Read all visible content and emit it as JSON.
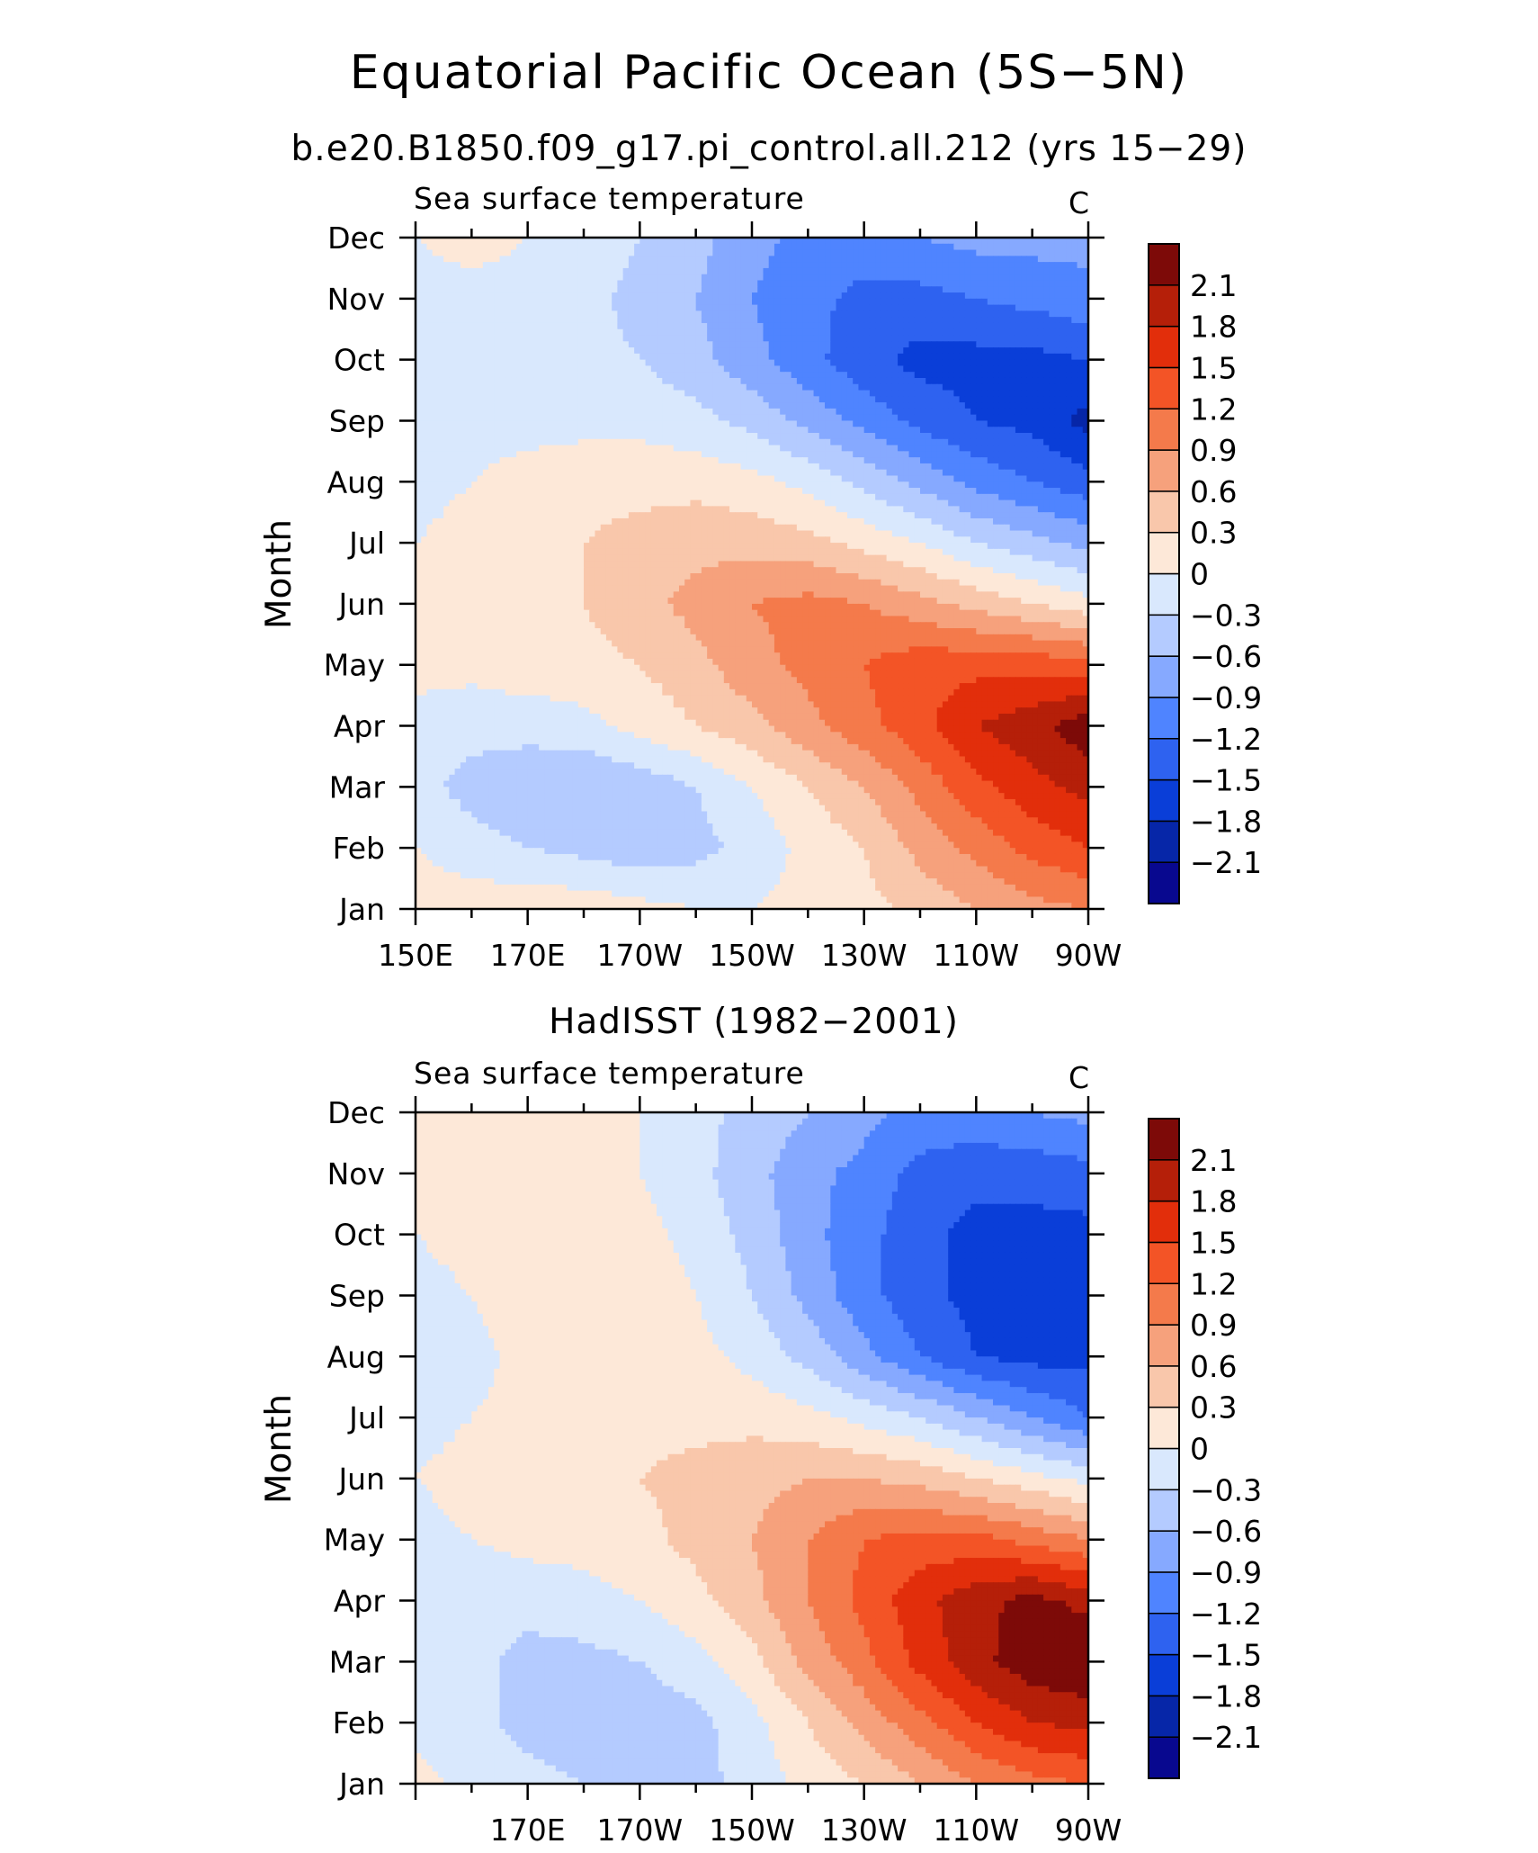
{
  "figure": {
    "title": "Equatorial Pacific Ocean (5S−5N)",
    "colors": {
      "levels": [
        "#08088f",
        "#0626a8",
        "#0a3ed8",
        "#2e62f0",
        "#4f84ff",
        "#86a9ff",
        "#b4cbff",
        "#d9e8fd",
        "#fde8d8",
        "#f9c7ab",
        "#f6a17c",
        "#f47a4b",
        "#f35426",
        "#e22e0b",
        "#b51f09",
        "#7d0a08"
      ],
      "line": "#000000"
    }
  },
  "chart_data": [
    {
      "type": "heatmap",
      "title": "b.e20.B1850.f09_g17.pi_control.all.212 (yrs 15−29)",
      "left_title": "Sea surface temperature",
      "right_title": "C",
      "ylabel": "Month",
      "x_ticks": [
        "150E",
        "170E",
        "170W",
        "150W",
        "130W",
        "110W",
        "90W"
      ],
      "x_tick_lon": [
        150,
        170,
        190,
        210,
        230,
        250,
        270
      ],
      "xlim": [
        150,
        270
      ],
      "y_ticks": [
        "Jan",
        "Feb",
        "Mar",
        "Apr",
        "May",
        "Jun",
        "Jul",
        "Aug",
        "Sep",
        "Oct",
        "Nov",
        "Dec"
      ],
      "colorbar_labels": [
        "−2.1",
        "−1.8",
        "−1.5",
        "−1.2",
        "−0.9",
        "−0.6",
        "−0.3",
        "0",
        "0.3",
        "0.6",
        "0.9",
        "1.2",
        "1.5",
        "1.8",
        "2.1"
      ],
      "levels": [
        -2.1,
        -1.8,
        -1.5,
        -1.2,
        -0.9,
        -0.6,
        -0.3,
        0,
        0.3,
        0.6,
        0.9,
        1.2,
        1.5,
        1.8,
        2.1
      ],
      "lon": [
        150,
        160,
        170,
        180,
        190,
        200,
        210,
        220,
        230,
        240,
        250,
        260,
        270
      ],
      "values": [
        [
          0.2,
          0.2,
          0.2,
          0.2,
          0.1,
          0.0,
          0.0,
          0.1,
          0.2,
          0.4,
          0.6,
          0.8,
          0.9
        ],
        [
          0.0,
          -0.2,
          -0.3,
          -0.4,
          -0.5,
          -0.4,
          -0.2,
          0.1,
          0.3,
          0.7,
          1.0,
          1.3,
          1.5
        ],
        [
          -0.2,
          -0.4,
          -0.5,
          -0.6,
          -0.5,
          -0.3,
          0.0,
          0.3,
          0.6,
          1.0,
          1.4,
          1.7,
          1.9
        ],
        [
          -0.1,
          -0.2,
          -0.2,
          -0.1,
          0.1,
          0.3,
          0.5,
          0.8,
          1.1,
          1.4,
          1.8,
          2.0,
          2.3
        ],
        [
          0.1,
          0.1,
          0.2,
          0.2,
          0.3,
          0.5,
          0.8,
          1.0,
          1.2,
          1.4,
          1.4,
          1.4,
          1.3
        ],
        [
          0.1,
          0.1,
          0.2,
          0.3,
          0.5,
          0.7,
          0.9,
          1.0,
          0.9,
          0.7,
          0.5,
          0.3,
          0.1
        ],
        [
          0.0,
          0.1,
          0.2,
          0.3,
          0.4,
          0.5,
          0.5,
          0.4,
          0.2,
          0.0,
          -0.3,
          -0.5,
          -0.7
        ],
        [
          -0.1,
          0.0,
          0.1,
          0.2,
          0.2,
          0.2,
          0.1,
          -0.1,
          -0.4,
          -0.7,
          -1.0,
          -1.2,
          -1.4
        ],
        [
          -0.1,
          -0.1,
          -0.1,
          -0.1,
          -0.1,
          -0.2,
          -0.4,
          -0.7,
          -1.0,
          -1.3,
          -1.5,
          -1.6,
          -1.9
        ],
        [
          -0.1,
          -0.1,
          -0.1,
          -0.2,
          -0.3,
          -0.5,
          -0.8,
          -1.1,
          -1.4,
          -1.6,
          -1.6,
          -1.6,
          -1.5
        ],
        [
          -0.1,
          -0.1,
          -0.1,
          -0.2,
          -0.4,
          -0.6,
          -0.9,
          -1.1,
          -1.3,
          -1.3,
          -1.2,
          -1.1,
          -1.0
        ],
        [
          0.0,
          0.1,
          0.0,
          -0.1,
          -0.3,
          -0.5,
          -0.8,
          -1.0,
          -1.0,
          -0.9,
          -0.8,
          -0.8,
          -0.8
        ]
      ]
    },
    {
      "type": "heatmap",
      "title": "HadISST (1982−2001)",
      "left_title": "Sea surface temperature",
      "right_title": "C",
      "ylabel": "Month",
      "x_ticks": [
        "170E",
        "170W",
        "150W",
        "130W",
        "110W",
        "90W"
      ],
      "x_tick_lon": [
        170,
        190,
        210,
        230,
        250,
        270
      ],
      "xlim": [
        150,
        270
      ],
      "y_ticks": [
        "Jan",
        "Feb",
        "Mar",
        "Apr",
        "May",
        "Jun",
        "Jul",
        "Aug",
        "Sep",
        "Oct",
        "Nov",
        "Dec"
      ],
      "colorbar_labels": [
        "−2.1",
        "−1.8",
        "−1.5",
        "−1.2",
        "−0.9",
        "−0.6",
        "−0.3",
        "0",
        "0.3",
        "0.6",
        "0.9",
        "1.2",
        "1.5",
        "1.8",
        "2.1"
      ],
      "levels": [
        -2.1,
        -1.8,
        -1.5,
        -1.2,
        -0.9,
        -0.6,
        -0.3,
        0,
        0.3,
        0.6,
        0.9,
        1.2,
        1.5,
        1.8,
        2.1
      ],
      "lon": [
        150,
        160,
        170,
        180,
        190,
        200,
        210,
        220,
        230,
        240,
        250,
        260,
        270
      ],
      "values": [
        [
          0.1,
          -0.1,
          -0.2,
          -0.3,
          -0.4,
          -0.4,
          -0.2,
          0.1,
          0.3,
          0.6,
          0.9,
          1.1,
          1.2
        ],
        [
          -0.1,
          -0.2,
          -0.4,
          -0.5,
          -0.5,
          -0.4,
          -0.1,
          0.3,
          0.7,
          1.1,
          1.5,
          1.8,
          1.9
        ],
        [
          -0.1,
          -0.2,
          -0.4,
          -0.4,
          -0.3,
          -0.1,
          0.2,
          0.7,
          1.1,
          1.6,
          2.0,
          2.3,
          2.4
        ],
        [
          -0.1,
          -0.2,
          -0.2,
          -0.1,
          0.0,
          0.2,
          0.5,
          0.9,
          1.3,
          1.7,
          2.0,
          2.2,
          2.0
        ],
        [
          -0.1,
          0.0,
          0.1,
          0.1,
          0.2,
          0.4,
          0.6,
          0.9,
          1.2,
          1.3,
          1.3,
          1.1,
          0.9
        ],
        [
          0.0,
          0.1,
          0.1,
          0.2,
          0.3,
          0.4,
          0.5,
          0.6,
          0.6,
          0.5,
          0.3,
          0.1,
          -0.1
        ],
        [
          -0.1,
          0.0,
          0.1,
          0.2,
          0.2,
          0.2,
          0.2,
          0.1,
          -0.1,
          -0.3,
          -0.6,
          -0.9,
          -1.2
        ],
        [
          -0.2,
          -0.1,
          0.1,
          0.2,
          0.2,
          0.1,
          -0.1,
          -0.4,
          -0.8,
          -1.2,
          -1.5,
          -1.6,
          -1.6
        ],
        [
          -0.1,
          0.0,
          0.2,
          0.3,
          0.2,
          0.0,
          -0.3,
          -0.7,
          -1.1,
          -1.4,
          -1.6,
          -1.7,
          -1.7
        ],
        [
          0.0,
          0.1,
          0.1,
          0.2,
          0.1,
          -0.1,
          -0.4,
          -0.8,
          -1.1,
          -1.4,
          -1.6,
          -1.6,
          -1.6
        ],
        [
          0.1,
          0.1,
          0.1,
          0.1,
          0.0,
          -0.2,
          -0.5,
          -0.8,
          -1.0,
          -1.3,
          -1.4,
          -1.4,
          -1.3
        ],
        [
          0.1,
          0.1,
          0.1,
          0.1,
          0.0,
          -0.2,
          -0.4,
          -0.6,
          -0.8,
          -1.0,
          -1.0,
          -0.9,
          -0.8
        ]
      ]
    }
  ]
}
